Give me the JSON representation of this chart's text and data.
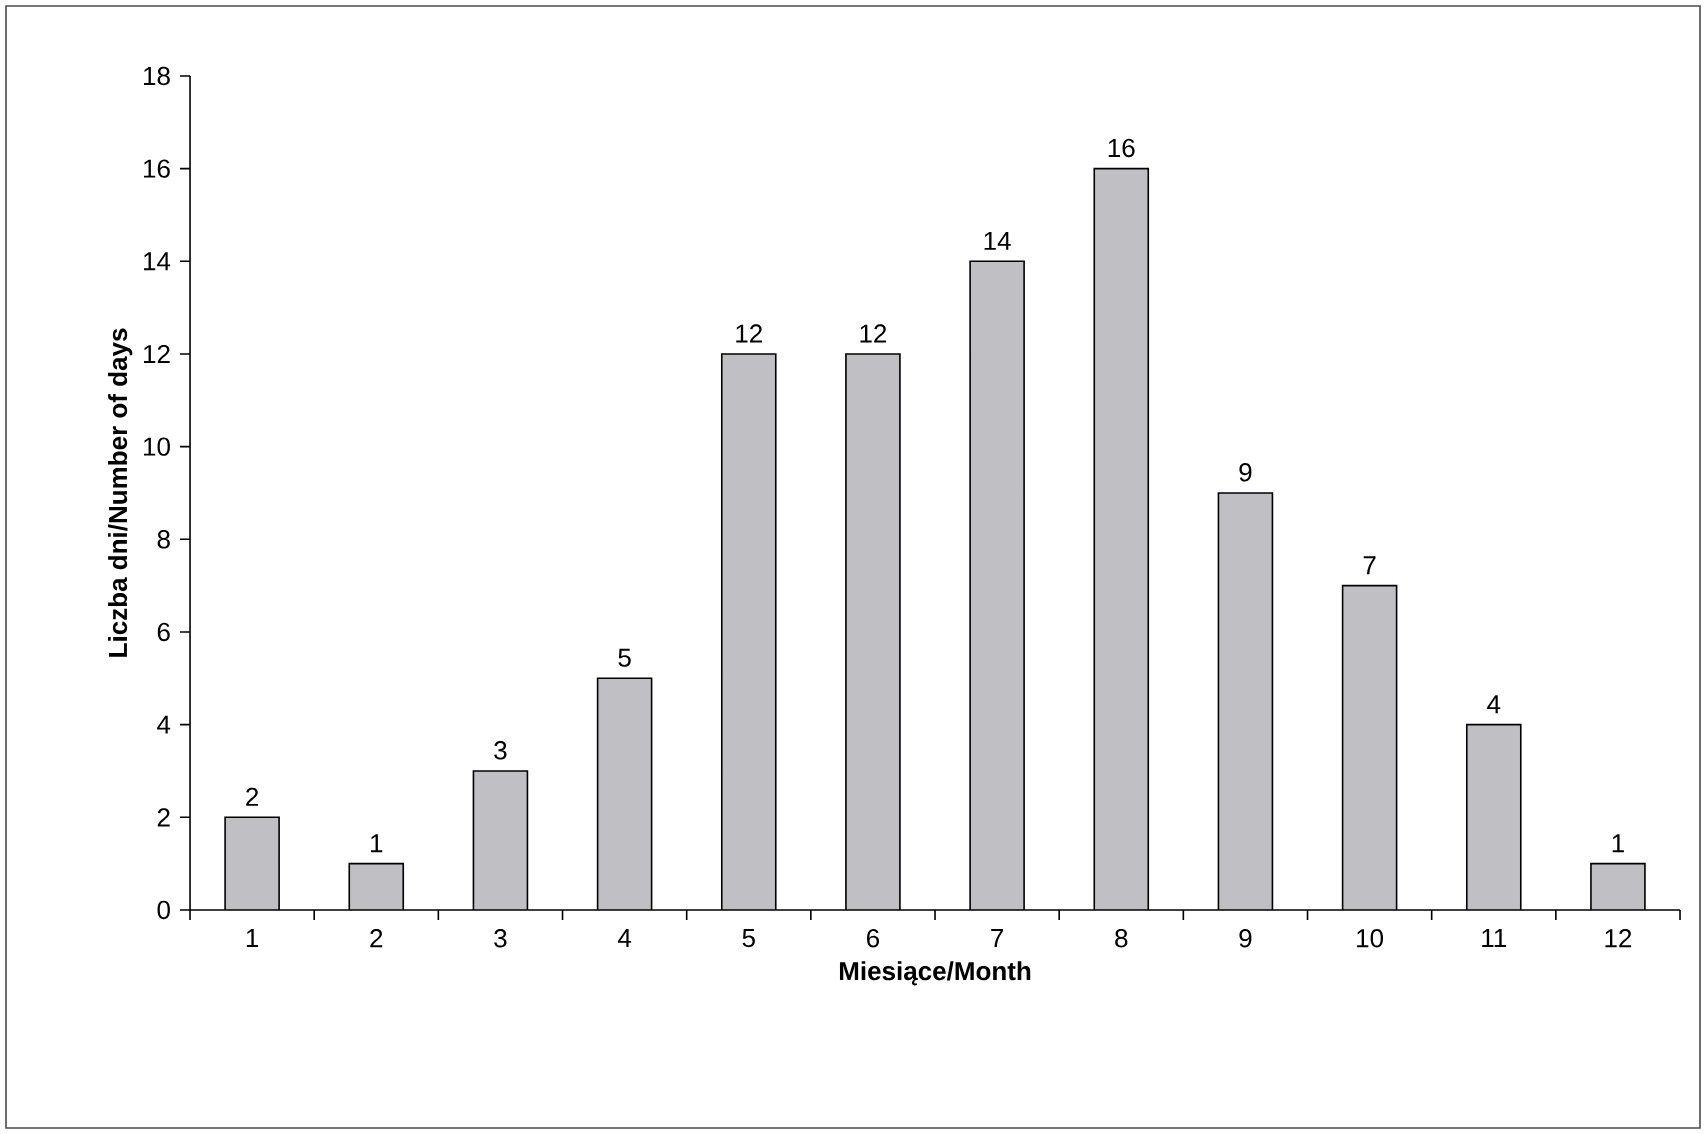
{
  "chart_data": {
    "type": "bar",
    "xlabel": "Miesiące/Month",
    "ylabel": "Liczba dni/Number of days",
    "categories": [
      "1",
      "2",
      "3",
      "4",
      "5",
      "6",
      "7",
      "8",
      "9",
      "10",
      "11",
      "12"
    ],
    "values": [
      2,
      1,
      3,
      5,
      12,
      12,
      14,
      16,
      9,
      7,
      4,
      1
    ],
    "color": "#c0c0c4",
    "ylim": [
      0,
      18
    ],
    "yticks": [
      0,
      2,
      4,
      6,
      8,
      10,
      12,
      14,
      16,
      18
    ],
    "data_labels": true,
    "grid": false
  }
}
